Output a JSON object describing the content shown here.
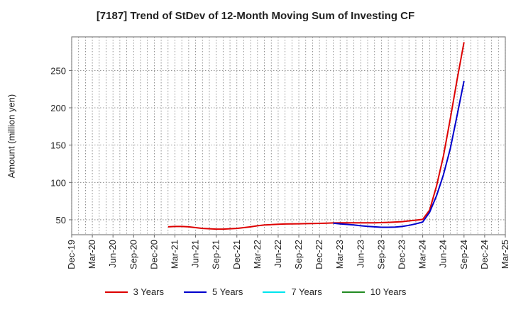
{
  "chart_data": {
    "type": "line",
    "title": "[7187]  Trend of StDev of 12-Month Moving Sum of Investing CF",
    "ylabel": "Amount (million yen)",
    "xlabel": "",
    "x_ticks": [
      "Dec-19",
      "Mar-20",
      "Jun-20",
      "Sep-20",
      "Dec-20",
      "Mar-21",
      "Jun-21",
      "Sep-21",
      "Dec-21",
      "Mar-22",
      "Jun-22",
      "Sep-22",
      "Dec-22",
      "Mar-23",
      "Jun-23",
      "Sep-23",
      "Dec-23",
      "Mar-24",
      "Jun-24",
      "Sep-24",
      "Dec-24",
      "Mar-25"
    ],
    "y_ticks": [
      50,
      100,
      150,
      200,
      250
    ],
    "ylim": [
      30,
      295
    ],
    "grid": true,
    "legend_position": "bottom",
    "series": [
      {
        "name": "3 Years",
        "color": "#dd0000",
        "x": [
          "Feb-21",
          "Mar-21",
          "Apr-21",
          "May-21",
          "Jun-21",
          "Jul-21",
          "Aug-21",
          "Sep-21",
          "Oct-21",
          "Nov-21",
          "Dec-21",
          "Jan-22",
          "Feb-22",
          "Mar-22",
          "Apr-22",
          "May-22",
          "Jun-22",
          "Jul-22",
          "Aug-22",
          "Sep-22",
          "Oct-22",
          "Nov-22",
          "Dec-22",
          "Jan-23",
          "Feb-23",
          "Mar-23",
          "Apr-23",
          "May-23",
          "Jun-23",
          "Jul-23",
          "Aug-23",
          "Sep-23",
          "Oct-23",
          "Nov-23",
          "Dec-23",
          "Jan-24",
          "Feb-24",
          "Mar-24",
          "Apr-24",
          "May-24",
          "Jun-24",
          "Jul-24",
          "Aug-24",
          "Sep-24"
        ],
        "values": [
          40.5,
          41,
          41,
          40.5,
          39.5,
          38.5,
          38,
          37.5,
          37.5,
          38,
          38.5,
          39.5,
          40.5,
          42,
          43,
          43.5,
          44,
          44.3,
          44.5,
          44.6,
          44.8,
          45,
          45.2,
          45.5,
          45.8,
          46,
          46,
          46,
          46,
          46,
          46,
          46.2,
          46.5,
          47,
          47.5,
          48.5,
          49.5,
          50.5,
          63,
          95,
          135,
          185,
          238,
          288
        ]
      },
      {
        "name": "5 Years",
        "color": "#0000cc",
        "x": [
          "Feb-23",
          "Mar-23",
          "Apr-23",
          "May-23",
          "Jun-23",
          "Jul-23",
          "Aug-23",
          "Sep-23",
          "Oct-23",
          "Nov-23",
          "Dec-23",
          "Jan-24",
          "Feb-24",
          "Mar-24",
          "Apr-24",
          "May-24",
          "Jun-24",
          "Jul-24",
          "Aug-24",
          "Sep-24"
        ],
        "values": [
          45.5,
          44.5,
          43.8,
          43,
          42,
          41.2,
          40.5,
          40,
          40,
          40.3,
          41,
          42.5,
          44.5,
          47,
          60,
          82,
          110,
          145,
          190,
          236
        ]
      },
      {
        "name": "7 Years",
        "color": "#00e5ee",
        "x": [],
        "values": []
      },
      {
        "name": "10 Years",
        "color": "#228B22",
        "x": [],
        "values": []
      }
    ]
  }
}
